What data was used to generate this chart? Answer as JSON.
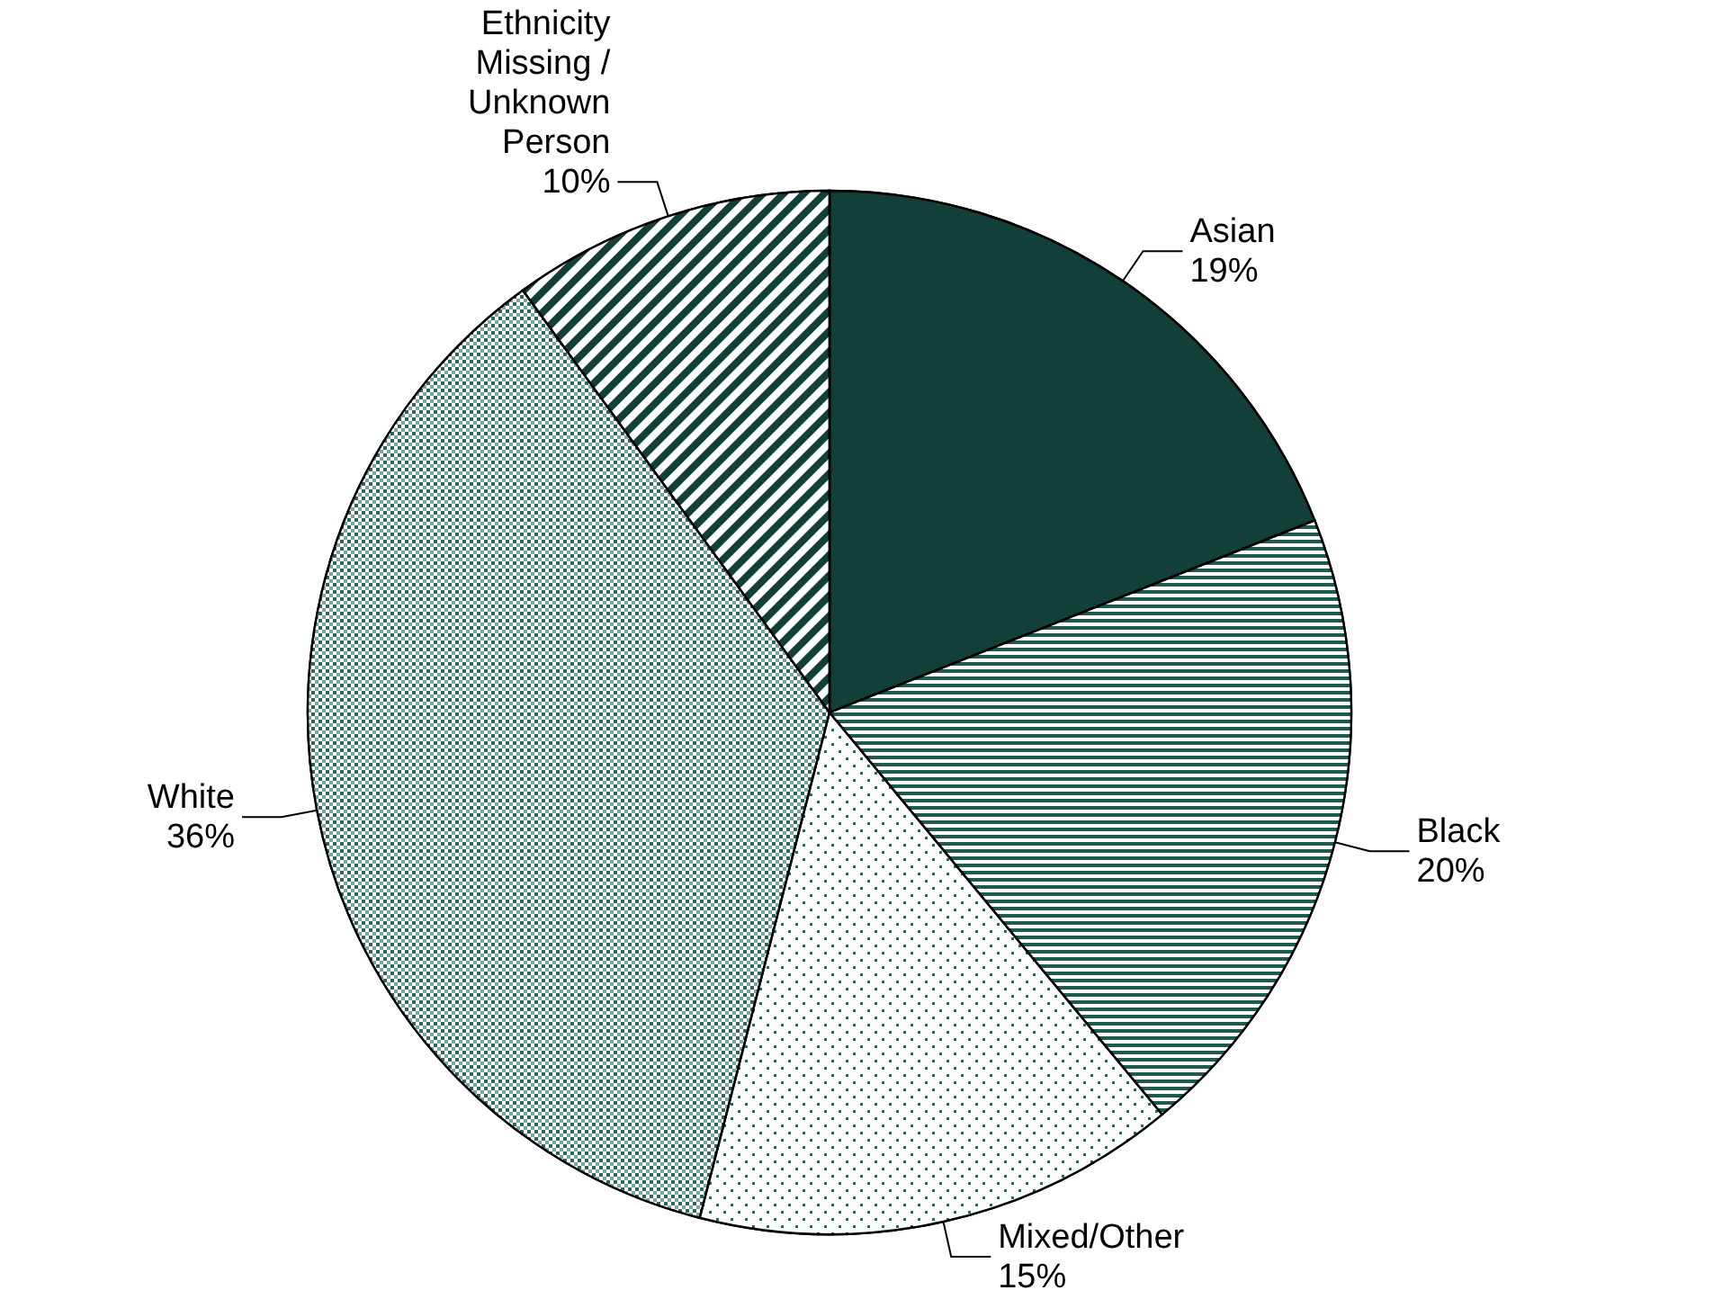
{
  "chart_data": {
    "type": "pie",
    "categories": [
      "Asian",
      "Black",
      "Mixed/Other",
      "White",
      "Ethnicity Missing / Unknown Person"
    ],
    "values": [
      19,
      20,
      15,
      36,
      10
    ],
    "value_labels": [
      "19%",
      "20%",
      "15%",
      "36%",
      "10%"
    ],
    "colors": [
      "#123f38",
      "#1f5a4e",
      "#2a6a5c",
      "#2a6a5c",
      "#123f38"
    ]
  }
}
